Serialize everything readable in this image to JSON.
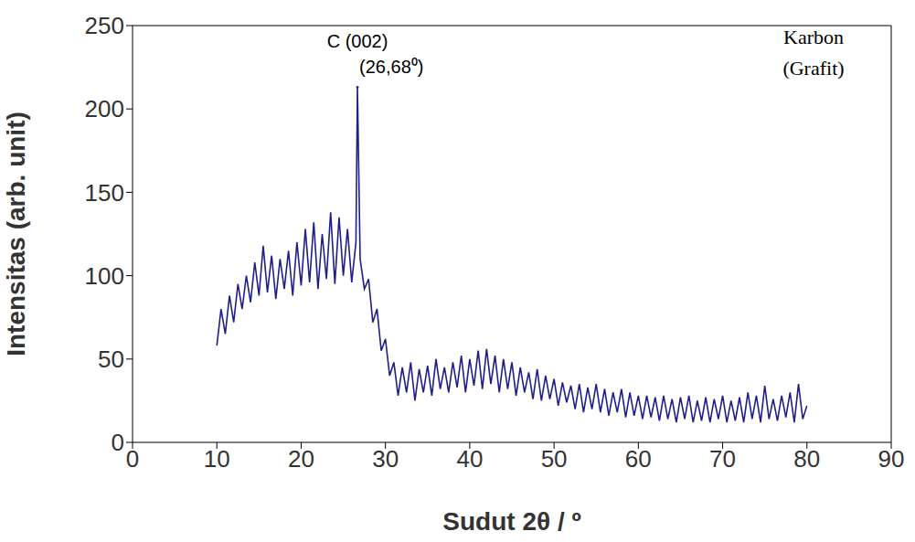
{
  "chart_data": {
    "type": "line",
    "x_label": "Sudut 2θ / º",
    "y_label": "Intensitas (arb. unit)",
    "annotations": [
      "C (002)",
      "(26,68⁰)",
      "Karbon (Grafit)"
    ],
    "color": "#1f1f8c",
    "xlim": [
      0,
      90
    ],
    "xticks": [
      0,
      10,
      20,
      30,
      40,
      50,
      60,
      70,
      80,
      90
    ],
    "ylim": [
      0,
      250
    ],
    "yticks": [
      0,
      50,
      100,
      150,
      200,
      250
    ],
    "grid": false,
    "x": [
      10,
      10.5,
      11,
      11.5,
      12,
      12.5,
      13,
      13.5,
      14,
      14.5,
      15,
      15.5,
      16,
      16.5,
      17,
      17.5,
      18,
      18.5,
      19,
      19.5,
      20,
      20.5,
      21,
      21.5,
      22,
      22.5,
      23,
      23.5,
      24,
      24.5,
      25,
      25.5,
      26,
      26.5,
      26.68,
      27,
      27.5,
      28,
      28.5,
      29,
      29.5,
      30,
      30.5,
      31,
      31.5,
      32,
      32.5,
      33,
      33.5,
      34,
      34.5,
      35,
      35.5,
      36,
      36.5,
      37,
      37.5,
      38,
      38.5,
      39,
      39.5,
      40,
      40.5,
      41,
      41.5,
      42,
      42.5,
      43,
      43.5,
      44,
      44.5,
      45,
      45.5,
      46,
      46.5,
      47,
      47.5,
      48,
      48.5,
      49,
      49.5,
      50,
      50.5,
      51,
      51.5,
      52,
      52.5,
      53,
      53.5,
      54,
      54.5,
      55,
      55.5,
      56,
      56.5,
      57,
      57.5,
      58,
      58.5,
      59,
      59.5,
      60,
      60.5,
      61,
      61.5,
      62,
      62.5,
      63,
      63.5,
      64,
      64.5,
      65,
      65.5,
      66,
      66.5,
      67,
      67.5,
      68,
      68.5,
      69,
      69.5,
      70,
      70.5,
      71,
      71.5,
      72,
      72.5,
      73,
      73.5,
      74,
      74.5,
      75,
      75.5,
      76,
      76.5,
      77,
      77.5,
      78,
      78.5,
      79,
      79.5,
      80
    ],
    "values": [
      58,
      80,
      65,
      88,
      72,
      95,
      80,
      100,
      84,
      108,
      88,
      118,
      90,
      112,
      86,
      110,
      92,
      115,
      88,
      120,
      94,
      128,
      96,
      132,
      92,
      125,
      98,
      138,
      95,
      135,
      100,
      128,
      96,
      120,
      213,
      110,
      92,
      98,
      72,
      80,
      55,
      62,
      40,
      48,
      28,
      45,
      30,
      48,
      25,
      44,
      30,
      46,
      28,
      50,
      32,
      45,
      30,
      48,
      33,
      52,
      30,
      50,
      34,
      55,
      32,
      56,
      35,
      52,
      30,
      50,
      32,
      48,
      28,
      45,
      30,
      42,
      26,
      44,
      25,
      40,
      26,
      38,
      22,
      36,
      24,
      34,
      20,
      35,
      18,
      33,
      20,
      35,
      18,
      32,
      16,
      30,
      18,
      32,
      15,
      30,
      16,
      28,
      14,
      28,
      15,
      27,
      13,
      28,
      14,
      26,
      12,
      27,
      14,
      28,
      12,
      25,
      13,
      27,
      12,
      26,
      14,
      28,
      12,
      25,
      13,
      27,
      12,
      30,
      14,
      28,
      12,
      34,
      14,
      26,
      13,
      28,
      15,
      30,
      12,
      35,
      14,
      22
    ]
  }
}
